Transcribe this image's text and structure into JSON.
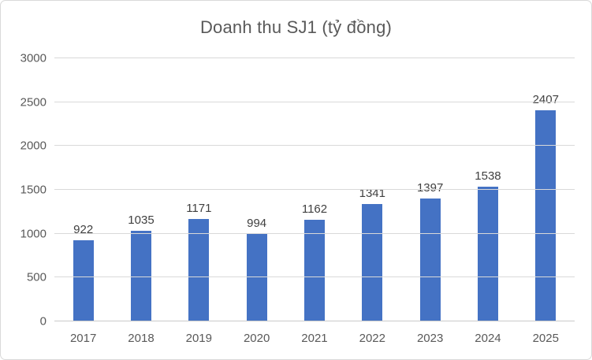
{
  "chart_data": {
    "type": "bar",
    "title": "Doanh thu SJ1 (tỷ đồng)",
    "categories": [
      "2017",
      "2018",
      "2019",
      "2020",
      "2021",
      "2022",
      "2023",
      "2024",
      "2025"
    ],
    "values": [
      922,
      1035,
      1171,
      994,
      1162,
      1341,
      1397,
      1538,
      2407
    ],
    "xlabel": "",
    "ylabel": "",
    "ylim": [
      0,
      3000
    ],
    "yticks": [
      0,
      500,
      1000,
      1500,
      2000,
      2500,
      3000
    ],
    "grid": "horizontal",
    "legend_position": "none",
    "colors": {
      "bar": "#4472C4",
      "title_text": "#595959",
      "tick_text": "#595959",
      "data_label_text": "#404040",
      "gridline": "#D9D9D9",
      "axis_line": "#C9C9C9",
      "background": "#FFFFFF",
      "frame_border": "#D9D9D9"
    }
  }
}
